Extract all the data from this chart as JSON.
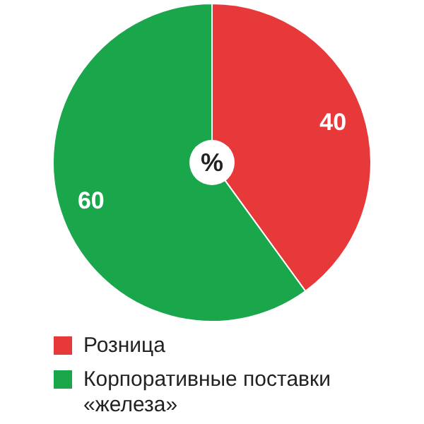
{
  "chart_data": {
    "type": "pie",
    "categories": [
      "Розница",
      "Корпоративные поставки «железа»"
    ],
    "values": [
      40,
      60
    ],
    "colors": [
      "#e8393a",
      "#1aa64b"
    ],
    "data_labels": true,
    "legend": "bottom",
    "annotations": [
      "%"
    ]
  }
}
